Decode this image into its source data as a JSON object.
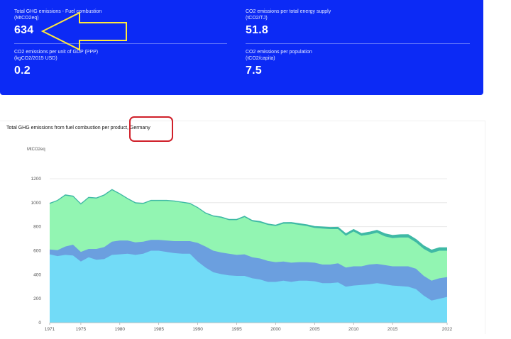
{
  "kpis": [
    {
      "label": "Total GHG emissions - Fuel combustion",
      "unit": "(MtCO2eq)",
      "value": "634"
    },
    {
      "label": "CO2 emissions per total energy supply",
      "unit": "(tCO2/TJ)",
      "value": "51.8"
    },
    {
      "label": "CO2 emissions per unit of GDP (PPP)",
      "unit": "(kgCO2/2015 USD)",
      "value": "0.2"
    },
    {
      "label": "CO2 emissions per population",
      "unit": "(tCO2/capita)",
      "value": "7.5"
    }
  ],
  "colors": {
    "panel": "#0c2af5",
    "annotation_arrow": "#ffe83d",
    "annotation_box": "#d0202a"
  },
  "chart_data": {
    "type": "area",
    "stacked": true,
    "title": "Total GHG emissions from fuel combustion per product, Germany",
    "ylabel": "MtCO2eq",
    "xlabel": "",
    "ylim": [
      0,
      1200
    ],
    "xlim": [
      1971,
      2022
    ],
    "yticks": [
      0,
      200,
      400,
      600,
      800,
      1000,
      1200
    ],
    "xticks": [
      "1971",
      "1975",
      "1980",
      "1985",
      "1990",
      "1995",
      "2000",
      "2005",
      "2010",
      "2015",
      "2022"
    ],
    "grid": true,
    "x": [
      1971,
      1972,
      1973,
      1974,
      1975,
      1976,
      1977,
      1978,
      1979,
      1980,
      1981,
      1982,
      1983,
      1984,
      1985,
      1986,
      1987,
      1988,
      1989,
      1990,
      1991,
      1992,
      1993,
      1994,
      1995,
      1996,
      1997,
      1998,
      1999,
      2000,
      2001,
      2002,
      2003,
      2004,
      2005,
      2006,
      2007,
      2008,
      2009,
      2010,
      2011,
      2012,
      2013,
      2014,
      2015,
      2016,
      2017,
      2018,
      2019,
      2020,
      2021,
      2022
    ],
    "series": [
      {
        "color": "#72dbf7",
        "values": [
          570,
          555,
          565,
          560,
          510,
          545,
          525,
          530,
          565,
          570,
          575,
          565,
          575,
          600,
          600,
          590,
          580,
          575,
          575,
          510,
          460,
          420,
          405,
          395,
          390,
          390,
          370,
          360,
          340,
          340,
          350,
          340,
          350,
          350,
          345,
          330,
          330,
          335,
          300,
          310,
          315,
          320,
          330,
          320,
          310,
          305,
          300,
          280,
          225,
          185,
          200,
          215
        ]
      },
      {
        "color": "#6b9fdf",
        "values": [
          40,
          50,
          70,
          90,
          80,
          70,
          90,
          100,
          110,
          115,
          110,
          105,
          100,
          90,
          90,
          95,
          100,
          105,
          105,
          155,
          175,
          180,
          180,
          180,
          175,
          180,
          175,
          175,
          175,
          165,
          160,
          160,
          155,
          155,
          155,
          155,
          155,
          160,
          160,
          160,
          155,
          165,
          160,
          160,
          160,
          165,
          170,
          170,
          165,
          165,
          170,
          165
        ]
      },
      {
        "color": "#92f5b2",
        "values": [
          380,
          410,
          425,
          400,
          395,
          425,
          420,
          430,
          430,
          385,
          345,
          325,
          315,
          325,
          325,
          330,
          330,
          320,
          310,
          290,
          275,
          285,
          290,
          280,
          290,
          310,
          300,
          300,
          300,
          300,
          315,
          325,
          310,
          300,
          290,
          300,
          295,
          285,
          265,
          290,
          255,
          250,
          260,
          240,
          235,
          240,
          240,
          220,
          225,
          230,
          230,
          220
        ]
      },
      {
        "color": "#3fb9a5",
        "values": [
          5,
          5,
          5,
          5,
          5,
          5,
          5,
          5,
          5,
          5,
          5,
          5,
          5,
          5,
          5,
          5,
          5,
          5,
          5,
          5,
          5,
          5,
          6,
          6,
          6,
          7,
          7,
          8,
          8,
          8,
          9,
          10,
          10,
          11,
          12,
          13,
          14,
          15,
          16,
          17,
          18,
          19,
          20,
          21,
          22,
          23,
          24,
          24,
          25,
          25,
          25,
          25
        ]
      }
    ]
  }
}
